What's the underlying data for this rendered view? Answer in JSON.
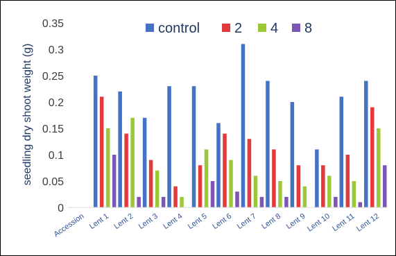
{
  "chart_data": {
    "type": "bar",
    "title": "",
    "xlabel": "",
    "ylabel": "seedling dry shoot weight (g)",
    "ylim": [
      0,
      0.35
    ],
    "yticks": [
      "0",
      "0.05",
      "0.1",
      "0.15",
      "0.2",
      "0.25",
      "0.3",
      "0.35"
    ],
    "grid": false,
    "legend_position": "top",
    "categories": [
      "Accession",
      "Lent 1",
      "Lent 2",
      "Lent 3",
      "Lent 4",
      "Lent 5",
      "Lent 6",
      "Lent 7",
      "Lent 8",
      "Lent 9",
      "Lent 10",
      "Lent 11",
      "Lent 12"
    ],
    "series": [
      {
        "name": "control",
        "color": "#4472c4",
        "values": [
          null,
          0.25,
          0.22,
          0.17,
          0.23,
          0.23,
          0.16,
          0.31,
          0.24,
          0.2,
          0.11,
          0.21,
          0.24
        ]
      },
      {
        "name": "2",
        "color": "#e33b3b",
        "values": [
          null,
          0.21,
          0.14,
          0.09,
          0.04,
          0.08,
          0.14,
          0.13,
          0.11,
          0.08,
          0.08,
          0.1,
          0.19
        ]
      },
      {
        "name": "4",
        "color": "#9bc838",
        "values": [
          null,
          0.15,
          0.17,
          0.07,
          0.02,
          0.11,
          0.09,
          0.06,
          0.05,
          0.04,
          0.06,
          0.05,
          0.15
        ]
      },
      {
        "name": "8",
        "color": "#7d55b4",
        "values": [
          null,
          0.1,
          0.02,
          0.02,
          0.0,
          0.05,
          0.03,
          0.02,
          0.02,
          0.0,
          0.02,
          0.01,
          0.08
        ]
      }
    ]
  }
}
